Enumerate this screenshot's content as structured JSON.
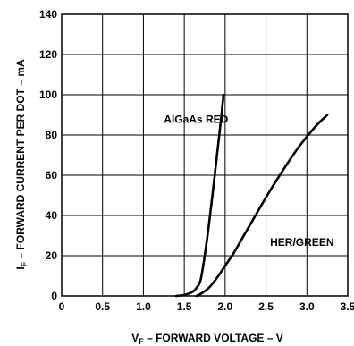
{
  "chart_data": {
    "type": "line",
    "xlim": [
      0,
      3.5
    ],
    "ylim": [
      0,
      140
    ],
    "x_ticks": [
      "0",
      "0.5",
      "1.0",
      "1.5",
      "2.0",
      "2.5",
      "3.0",
      "3.5"
    ],
    "y_ticks": [
      "0",
      "20",
      "40",
      "60",
      "80",
      "100",
      "120",
      "140"
    ],
    "grid": true,
    "xlabel": {
      "main": "V",
      "sub": "F",
      "rest": " – FORWARD VOLTAGE – V"
    },
    "ylabel": {
      "main": "I",
      "sub": "F",
      "rest": " – FORWARD CURRENT PER DOT – mA"
    },
    "series": [
      {
        "name": "AlGaAs RED",
        "x": [
          1.4,
          1.5,
          1.6,
          1.65,
          1.7,
          1.75,
          1.8,
          1.85,
          1.9,
          1.95,
          1.98
        ],
        "y": [
          0,
          0.5,
          2,
          4,
          8,
          20,
          35,
          52,
          70,
          88,
          100
        ]
      },
      {
        "name": "HER/GREEN",
        "x": [
          1.65,
          1.7,
          1.8,
          1.9,
          2.0,
          2.1,
          2.2,
          2.3,
          2.5,
          2.7,
          2.9,
          3.1,
          3.25
        ],
        "y": [
          0,
          1,
          4,
          9,
          15,
          21,
          28,
          35,
          49,
          62,
          74,
          84,
          90
        ]
      }
    ],
    "annotations": [
      {
        "text": "AlGaAs RED",
        "x": 1.25,
        "y": 86
      },
      {
        "text": "HER/GREEN",
        "x": 2.55,
        "y": 25
      }
    ]
  }
}
